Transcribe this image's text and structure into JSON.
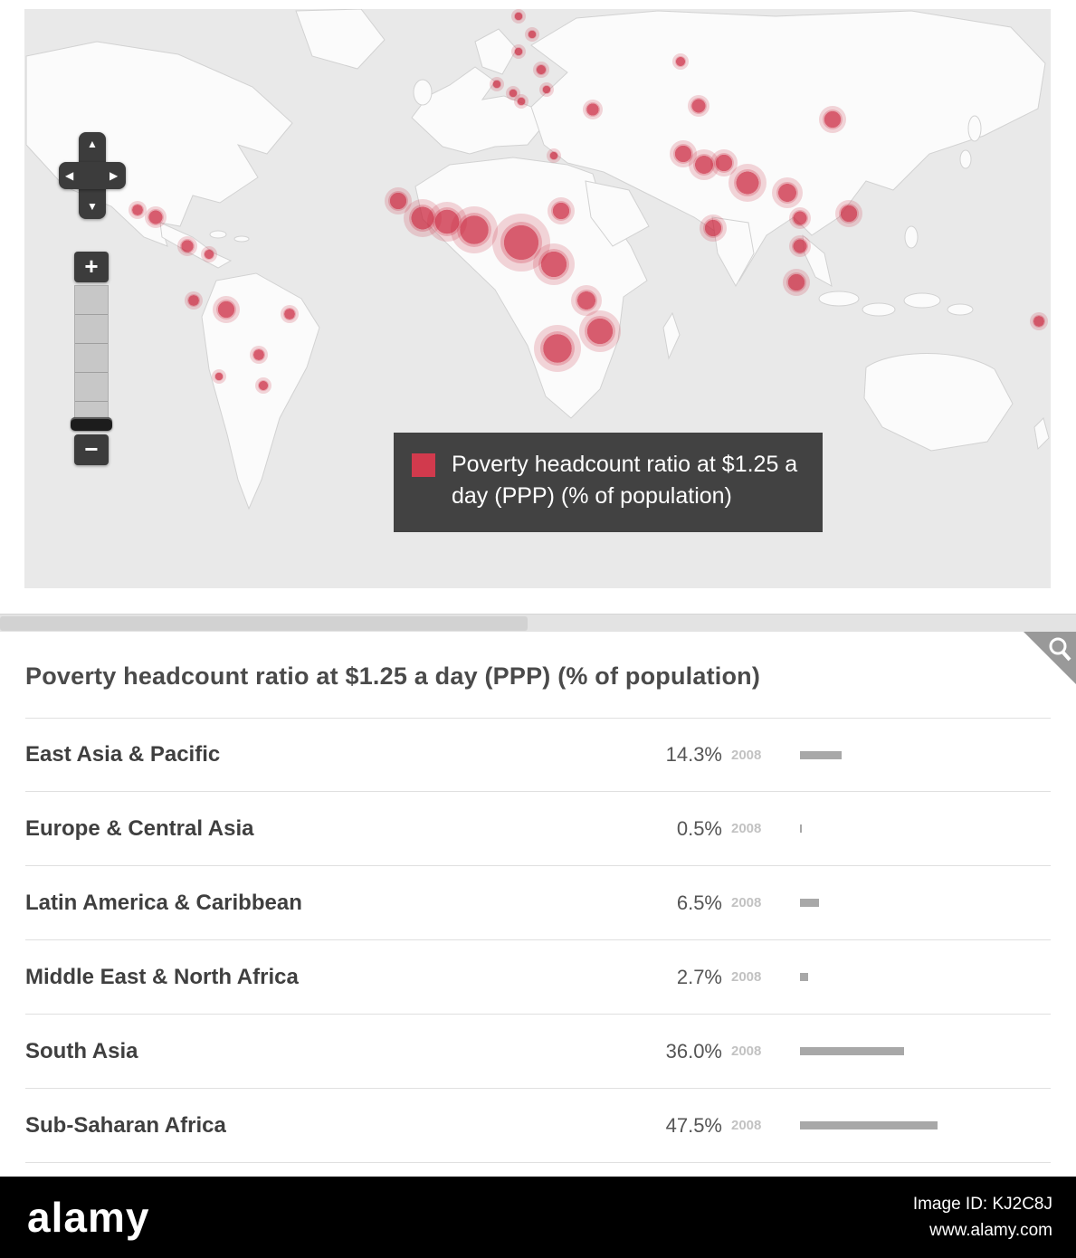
{
  "map": {
    "legend": {
      "label": "Poverty headcount ratio at $1.25 a day (PPP) (% of population)",
      "swatch_color": "#d13a4d"
    },
    "controls": {
      "zoom_in": "+",
      "zoom_out": "−",
      "pan_up": "▲",
      "pan_down": "▼",
      "pan_left": "◀",
      "pan_right": "▶"
    },
    "bubble_color": "#c91f37",
    "bubbles": [
      [
        546,
        8,
        5
      ],
      [
        561,
        28,
        5
      ],
      [
        546,
        47,
        5
      ],
      [
        571,
        67,
        6
      ],
      [
        522,
        83,
        5
      ],
      [
        540,
        93,
        5
      ],
      [
        577,
        89,
        5
      ],
      [
        549,
        102,
        5
      ],
      [
        628,
        111,
        8
      ],
      [
        725,
        58,
        6
      ],
      [
        745,
        107,
        9
      ],
      [
        585,
        162,
        5
      ],
      [
        593,
        223,
        11
      ],
      [
        893,
        122,
        11
      ],
      [
        728,
        160,
        11
      ],
      [
        751,
        172,
        12
      ],
      [
        773,
        170,
        11
      ],
      [
        799,
        192,
        15
      ],
      [
        843,
        203,
        12
      ],
      [
        857,
        231,
        9
      ],
      [
        911,
        226,
        11
      ],
      [
        761,
        242,
        11
      ],
      [
        857,
        262,
        9
      ],
      [
        853,
        302,
        11
      ],
      [
        413,
        212,
        11
      ],
      [
        440,
        231,
        15
      ],
      [
        467,
        235,
        16
      ],
      [
        497,
        244,
        19
      ],
      [
        549,
        258,
        23
      ],
      [
        585,
        282,
        17
      ],
      [
        621,
        322,
        12
      ],
      [
        636,
        356,
        17
      ],
      [
        589,
        375,
        19
      ],
      [
        1121,
        345,
        7
      ],
      [
        125,
        222,
        7
      ],
      [
        145,
        230,
        9
      ],
      [
        180,
        262,
        8
      ],
      [
        204,
        271,
        6
      ],
      [
        187,
        322,
        7
      ],
      [
        223,
        332,
        11
      ],
      [
        293,
        337,
        7
      ],
      [
        259,
        382,
        7
      ],
      [
        215,
        406,
        5
      ],
      [
        264,
        416,
        6
      ]
    ]
  },
  "panel": {
    "title": "Poverty headcount ratio at $1.25 a day (PPP) (% of population)",
    "bar_scale": 3.2,
    "rows": [
      {
        "region": "East Asia & Pacific",
        "value": "14.3%",
        "year": "2008",
        "pct": 14.3
      },
      {
        "region": "Europe & Central Asia",
        "value": "0.5%",
        "year": "2008",
        "pct": 0.5
      },
      {
        "region": "Latin America & Caribbean",
        "value": "6.5%",
        "year": "2008",
        "pct": 6.5
      },
      {
        "region": "Middle East & North Africa",
        "value": "2.7%",
        "year": "2008",
        "pct": 2.7
      },
      {
        "region": "South Asia",
        "value": "36.0%",
        "year": "2008",
        "pct": 36.0
      },
      {
        "region": "Sub-Saharan Africa",
        "value": "47.5%",
        "year": "2008",
        "pct": 47.5
      }
    ]
  },
  "footer": {
    "brand": "alamy",
    "image_id": "Image ID: KJ2C8J",
    "url": "www.alamy.com"
  },
  "chart_data": {
    "type": "bar",
    "title": "Poverty headcount ratio at $1.25 a day (PPP) (% of population)",
    "categories": [
      "East Asia & Pacific",
      "Europe & Central Asia",
      "Latin America & Caribbean",
      "Middle East & North Africa",
      "South Asia",
      "Sub-Saharan Africa"
    ],
    "values": [
      14.3,
      0.5,
      6.5,
      2.7,
      36.0,
      47.5
    ],
    "year": "2008",
    "unit": "% of population",
    "xlim": [
      0,
      50
    ],
    "legend_position": "map-overlay",
    "grid": false
  }
}
